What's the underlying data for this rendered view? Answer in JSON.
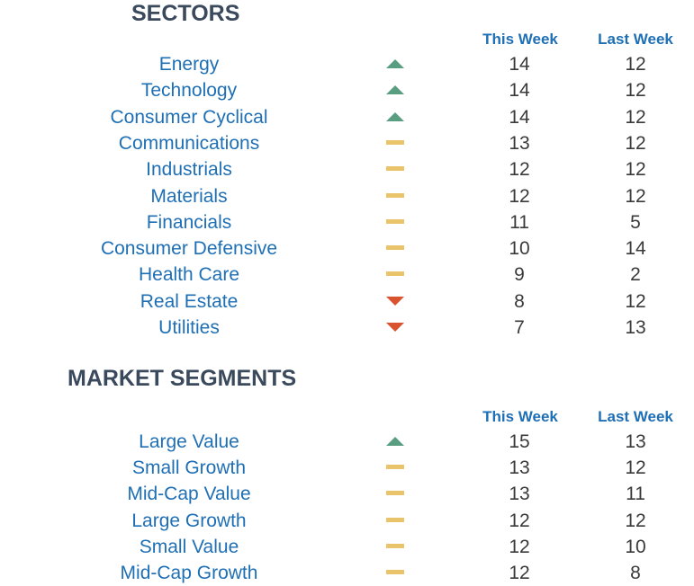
{
  "sectors": {
    "title": "SECTORS",
    "col_this": "This Week",
    "col_last": "Last Week",
    "rows": [
      {
        "name": "Energy",
        "trend": "up",
        "this": "14",
        "last": "12"
      },
      {
        "name": "Technology",
        "trend": "up",
        "this": "14",
        "last": "12"
      },
      {
        "name": "Consumer Cyclical",
        "trend": "up",
        "this": "14",
        "last": "12"
      },
      {
        "name": "Communications",
        "trend": "flat",
        "this": "13",
        "last": "12"
      },
      {
        "name": "Industrials",
        "trend": "flat",
        "this": "12",
        "last": "12"
      },
      {
        "name": "Materials",
        "trend": "flat",
        "this": "12",
        "last": "12"
      },
      {
        "name": "Financials",
        "trend": "flat",
        "this": "11",
        "last": "5"
      },
      {
        "name": "Consumer Defensive",
        "trend": "flat",
        "this": "10",
        "last": "14"
      },
      {
        "name": "Health Care",
        "trend": "flat",
        "this": "9",
        "last": "2"
      },
      {
        "name": "Real Estate",
        "trend": "down",
        "this": "8",
        "last": "12"
      },
      {
        "name": "Utilities",
        "trend": "down",
        "this": "7",
        "last": "13"
      }
    ]
  },
  "segments": {
    "title": "MARKET SEGMENTS",
    "col_this": "This Week",
    "col_last": "Last Week",
    "rows": [
      {
        "name": "Large Value",
        "trend": "up",
        "this": "15",
        "last": "13"
      },
      {
        "name": "Small Growth",
        "trend": "flat",
        "this": "13",
        "last": "12"
      },
      {
        "name": "Mid-Cap Value",
        "trend": "flat",
        "this": "13",
        "last": "11"
      },
      {
        "name": "Large Growth",
        "trend": "flat",
        "this": "12",
        "last": "12"
      },
      {
        "name": "Small Value",
        "trend": "flat",
        "this": "12",
        "last": "10"
      },
      {
        "name": "Mid-Cap Growth",
        "trend": "flat",
        "this": "12",
        "last": "8"
      }
    ]
  },
  "icons": {
    "up": "triangle-up-icon",
    "flat": "dash-icon",
    "down": "triangle-down-icon"
  },
  "colors": {
    "up": "#5a9e82",
    "flat": "#e9c46a",
    "down": "#d9532f",
    "label": "#1f6fb5",
    "value": "#3a3a3a",
    "title": "#3a4a5c"
  }
}
